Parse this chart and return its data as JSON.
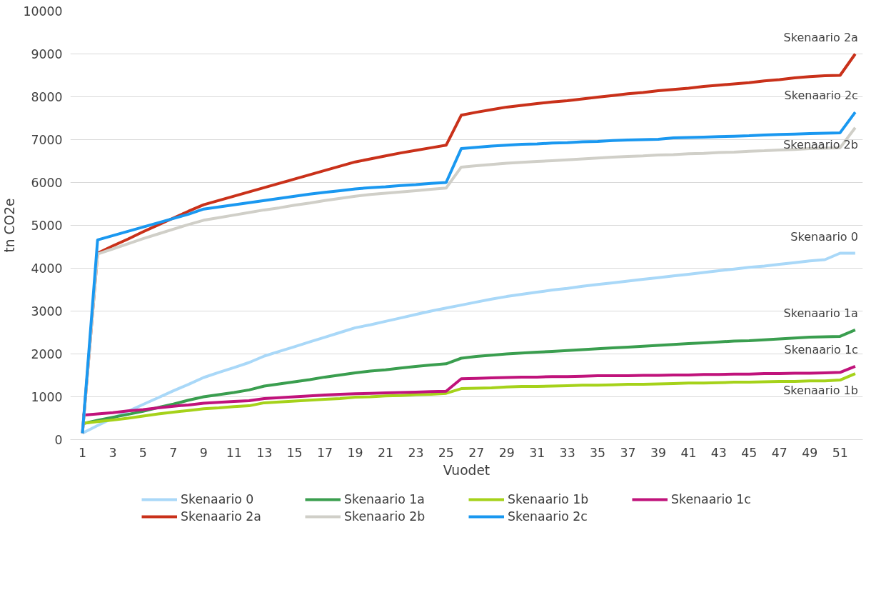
{
  "chart_data": {
    "type": "line",
    "xlabel": "Vuodet",
    "ylabel": "tn CO2e",
    "x": [
      1,
      2,
      3,
      4,
      5,
      6,
      7,
      8,
      9,
      10,
      11,
      12,
      13,
      14,
      15,
      16,
      17,
      18,
      19,
      20,
      21,
      22,
      23,
      24,
      25,
      26,
      27,
      28,
      29,
      30,
      31,
      32,
      33,
      34,
      35,
      36,
      37,
      38,
      39,
      40,
      41,
      42,
      43,
      44,
      45,
      46,
      47,
      48,
      49,
      50,
      51,
      52
    ],
    "xlim": [
      0.2,
      52.5
    ],
    "xticks": [
      1,
      3,
      5,
      7,
      9,
      11,
      13,
      15,
      17,
      19,
      21,
      23,
      25,
      27,
      29,
      31,
      33,
      35,
      37,
      39,
      41,
      43,
      45,
      47,
      49,
      51
    ],
    "ylim": [
      0,
      10000
    ],
    "yticks": [
      0,
      1000,
      2000,
      3000,
      4000,
      5000,
      6000,
      7000,
      8000,
      9000,
      10000
    ],
    "grid": "y",
    "legend": "bottom",
    "marker": "none",
    "line_style": "solid",
    "series": [
      {
        "name": "Skenaario 0",
        "color": "#a9d8f8",
        "values": [
          150,
          330,
          500,
          660,
          820,
          980,
          1140,
          1290,
          1450,
          1570,
          1680,
          1800,
          1950,
          2060,
          2170,
          2280,
          2390,
          2500,
          2610,
          2680,
          2760,
          2840,
          2920,
          3000,
          3070,
          3140,
          3210,
          3280,
          3340,
          3390,
          3440,
          3490,
          3530,
          3580,
          3620,
          3660,
          3700,
          3740,
          3780,
          3820,
          3860,
          3900,
          3940,
          3980,
          4020,
          4050,
          4090,
          4130,
          4170,
          4200,
          4350,
          4350
        ]
      },
      {
        "name": "Skenaario 1a",
        "color": "#3a9e4f",
        "values": [
          370,
          450,
          520,
          590,
          660,
          750,
          830,
          920,
          1000,
          1050,
          1100,
          1160,
          1250,
          1300,
          1350,
          1400,
          1460,
          1510,
          1560,
          1600,
          1630,
          1670,
          1710,
          1740,
          1770,
          1900,
          1940,
          1970,
          2000,
          2020,
          2040,
          2060,
          2080,
          2100,
          2120,
          2140,
          2160,
          2180,
          2200,
          2220,
          2240,
          2260,
          2280,
          2300,
          2310,
          2330,
          2350,
          2370,
          2390,
          2400,
          2410,
          2560
        ]
      },
      {
        "name": "Skenaario 1b",
        "color": "#a5d21a",
        "values": [
          380,
          420,
          460,
          500,
          550,
          600,
          640,
          680,
          720,
          740,
          770,
          790,
          860,
          880,
          900,
          920,
          940,
          960,
          990,
          1000,
          1020,
          1030,
          1050,
          1060,
          1080,
          1190,
          1200,
          1210,
          1230,
          1240,
          1240,
          1250,
          1260,
          1270,
          1270,
          1280,
          1290,
          1290,
          1300,
          1310,
          1320,
          1320,
          1330,
          1340,
          1340,
          1350,
          1360,
          1360,
          1370,
          1370,
          1390,
          1540
        ]
      },
      {
        "name": "Skenaario 1c",
        "color": "#c0137b",
        "values": [
          570,
          600,
          630,
          670,
          700,
          740,
          780,
          810,
          850,
          870,
          890,
          910,
          960,
          980,
          1000,
          1020,
          1040,
          1060,
          1070,
          1080,
          1090,
          1100,
          1110,
          1120,
          1130,
          1420,
          1430,
          1440,
          1450,
          1460,
          1460,
          1470,
          1470,
          1480,
          1490,
          1490,
          1490,
          1500,
          1500,
          1510,
          1510,
          1520,
          1520,
          1530,
          1530,
          1540,
          1540,
          1550,
          1550,
          1560,
          1570,
          1710
        ]
      },
      {
        "name": "Skenaario 2a",
        "color": "#c9311a",
        "values": [
          150,
          4350,
          4520,
          4680,
          4850,
          5010,
          5170,
          5330,
          5480,
          5580,
          5680,
          5780,
          5880,
          5980,
          6080,
          6180,
          6280,
          6380,
          6480,
          6550,
          6620,
          6690,
          6750,
          6810,
          6870,
          7570,
          7640,
          7700,
          7760,
          7800,
          7840,
          7880,
          7910,
          7950,
          7990,
          8030,
          8070,
          8100,
          8140,
          8170,
          8200,
          8240,
          8270,
          8300,
          8330,
          8370,
          8400,
          8440,
          8470,
          8490,
          8500,
          9000
        ]
      },
      {
        "name": "Skenaario 2b",
        "color": "#d0cfc8",
        "values": [
          150,
          4330,
          4450,
          4570,
          4690,
          4800,
          4910,
          5020,
          5120,
          5180,
          5240,
          5300,
          5360,
          5410,
          5470,
          5520,
          5580,
          5630,
          5680,
          5720,
          5750,
          5780,
          5810,
          5840,
          5870,
          6360,
          6390,
          6420,
          6450,
          6470,
          6490,
          6510,
          6530,
          6550,
          6570,
          6590,
          6610,
          6620,
          6640,
          6650,
          6670,
          6680,
          6700,
          6710,
          6730,
          6740,
          6760,
          6770,
          6790,
          6800,
          6810,
          7280
        ]
      },
      {
        "name": "Skenaario 2c",
        "color": "#1a98f0",
        "values": [
          150,
          4660,
          4760,
          4860,
          4960,
          5060,
          5160,
          5260,
          5380,
          5430,
          5480,
          5530,
          5580,
          5630,
          5680,
          5730,
          5770,
          5810,
          5850,
          5880,
          5900,
          5930,
          5950,
          5980,
          6000,
          6790,
          6820,
          6850,
          6870,
          6890,
          6900,
          6920,
          6930,
          6950,
          6960,
          6980,
          6990,
          7000,
          7010,
          7040,
          7050,
          7060,
          7070,
          7080,
          7090,
          7110,
          7120,
          7130,
          7140,
          7150,
          7160,
          7640
        ]
      }
    ]
  }
}
